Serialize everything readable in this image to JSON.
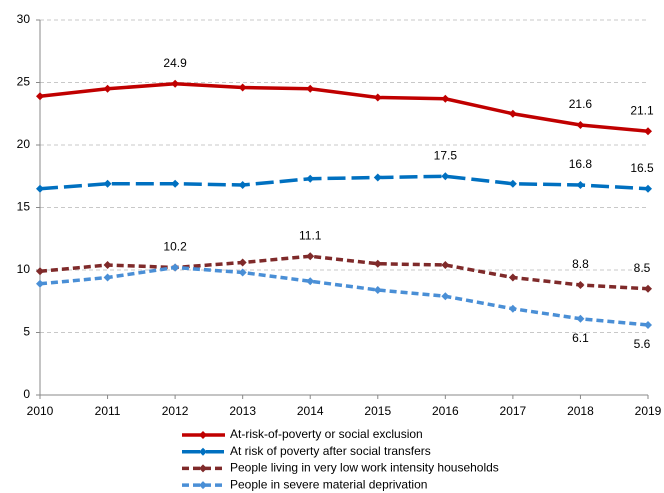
{
  "chart_data": {
    "type": "line",
    "categories": [
      "2010",
      "2011",
      "2012",
      "2013",
      "2014",
      "2015",
      "2016",
      "2017",
      "2018",
      "2019"
    ],
    "series": [
      {
        "name": "At-risk-of-poverty or social exclusion",
        "color": "#c00000",
        "dash": "solid",
        "label_position": "above",
        "values": [
          23.9,
          24.5,
          24.9,
          24.6,
          24.5,
          23.8,
          23.7,
          22.5,
          21.6,
          21.1
        ],
        "value_labels": [
          null,
          null,
          "24.9",
          null,
          null,
          null,
          null,
          null,
          "21.6",
          "21.1"
        ]
      },
      {
        "name": "At risk of poverty after social transfers",
        "color": "#0070c0",
        "dash": "long",
        "label_position": "above",
        "values": [
          16.5,
          16.9,
          16.9,
          16.8,
          17.3,
          17.4,
          17.5,
          16.9,
          16.8,
          16.5
        ],
        "value_labels": [
          null,
          null,
          null,
          null,
          null,
          null,
          "17.5",
          null,
          "16.8",
          "16.5"
        ]
      },
      {
        "name": "People living in very low work intensity households",
        "color": "#7f2a2a",
        "dash": "short",
        "label_position": "above",
        "values": [
          9.9,
          10.4,
          10.2,
          10.6,
          11.1,
          10.5,
          10.4,
          9.4,
          8.8,
          8.5
        ],
        "value_labels": [
          null,
          null,
          "10.2",
          null,
          "11.1",
          null,
          null,
          null,
          "8.8",
          "8.5"
        ]
      },
      {
        "name": "People in severe material deprivation",
        "color": "#4a8fd6",
        "dash": "short",
        "label_position": "below",
        "values": [
          8.9,
          9.4,
          10.2,
          9.8,
          9.1,
          8.4,
          7.9,
          6.9,
          6.1,
          5.6
        ],
        "value_labels": [
          null,
          null,
          null,
          null,
          null,
          null,
          null,
          null,
          "6.1",
          "5.6"
        ]
      }
    ],
    "ylim": [
      0,
      30
    ],
    "yticks": [
      0,
      5,
      10,
      15,
      20,
      25,
      30
    ],
    "grid": true,
    "legend": "bottom"
  }
}
